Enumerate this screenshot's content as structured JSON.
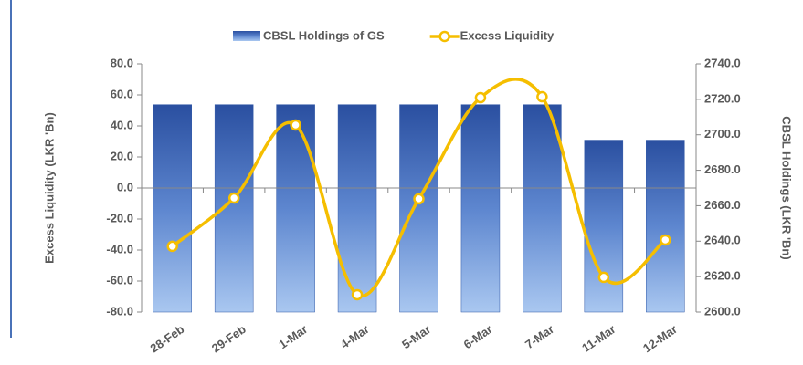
{
  "chart_data": {
    "type": "bar",
    "categories": [
      "28-Feb",
      "29-Feb",
      "1-Mar",
      "4-Mar",
      "5-Mar",
      "6-Mar",
      "7-Mar",
      "11-Mar",
      "12-Mar"
    ],
    "series": [
      {
        "name": "CBSL Holdings of GS",
        "type": "bar",
        "axis": "y2",
        "color": "#2e56a6",
        "values": [
          2717,
          2717,
          2717,
          2717,
          2717,
          2717,
          2717,
          2697,
          2697
        ]
      },
      {
        "name": "Excess Liquidity",
        "type": "line",
        "color": "#f5be00",
        "values": [
          -37.6,
          -6.5,
          40.6,
          -68.8,
          -7,
          58.2,
          58.8,
          -57.6,
          -33.5
        ]
      }
    ],
    "ylabel": "Excess Liquidity (LKR 'Bn)",
    "y2label": "CBSL Holdings (LKR 'Bn)",
    "ylim": [
      -80,
      80
    ],
    "yticks": [
      {
        "value": -80,
        "label": "-80.0"
      },
      {
        "value": -60,
        "label": "-60.0"
      },
      {
        "value": -40,
        "label": "-40.0"
      },
      {
        "value": -20,
        "label": "-20.0"
      },
      {
        "value": 0,
        "label": "0.0"
      },
      {
        "value": 20,
        "label": "20.0"
      },
      {
        "value": 40,
        "label": "40.0"
      },
      {
        "value": 60,
        "label": "60.0"
      },
      {
        "value": 80,
        "label": "80.0"
      }
    ],
    "y2lim": [
      2600,
      2740
    ],
    "y2ticks": [
      {
        "value": 2600,
        "label": "2600.0"
      },
      {
        "value": 2620,
        "label": "2620.0"
      },
      {
        "value": 2640,
        "label": "2640.0"
      },
      {
        "value": 2660,
        "label": "2660.0"
      },
      {
        "value": 2680,
        "label": "2680.0"
      },
      {
        "value": 2700,
        "label": "2700.0"
      },
      {
        "value": 2720,
        "label": "2720.0"
      },
      {
        "value": 2740,
        "label": "2740.0"
      }
    ],
    "grid": false,
    "legend": "top"
  }
}
